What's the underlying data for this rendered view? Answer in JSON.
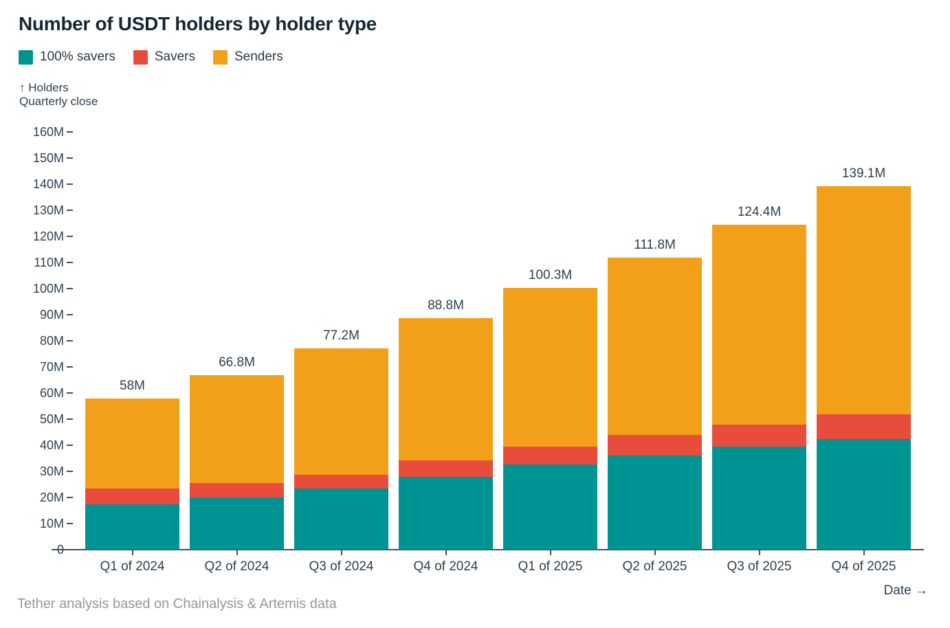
{
  "title": "Number of USDT holders by holder type",
  "y_axis_caption_line1": "↑ Holders",
  "y_axis_caption_line2": "Quarterly close",
  "x_axis_caption": "Date →",
  "footnote": "Tether analysis based on Chainalysis & Artemis data",
  "colors": {
    "teal": "#009394",
    "red": "#e84c3c",
    "orange": "#f2a019",
    "text_dark": "#2d4050",
    "title_dark": "#152734",
    "axis": "#3d4f5c",
    "footnote_gray": "#8e99a1",
    "background": "#ffffff"
  },
  "chart_data": {
    "type": "bar",
    "stacked": true,
    "title": "Number of USDT holders by holder type",
    "xlabel": "Date",
    "ylabel": "Holders, quarterly close (millions)",
    "grid": false,
    "legend_position": "top-left",
    "categories": [
      "Q1 of 2024",
      "Q2 of 2024",
      "Q3 of 2024",
      "Q4 of 2024",
      "Q1 of 2025",
      "Q2 of 2025",
      "Q3 of 2025",
      "Q4 of 2025"
    ],
    "series": [
      {
        "name": "100% savers",
        "color_key": "teal",
        "values": [
          17.3,
          19.9,
          23.4,
          28.0,
          32.6,
          36.0,
          39.6,
          42.4
        ]
      },
      {
        "name": "Savers",
        "color_key": "red",
        "values": [
          6.2,
          5.7,
          5.4,
          6.1,
          6.9,
          8.0,
          8.2,
          9.5
        ]
      },
      {
        "name": "Senders",
        "color_key": "orange",
        "values": [
          34.5,
          41.2,
          48.4,
          54.7,
          60.8,
          67.8,
          76.6,
          87.2
        ]
      }
    ],
    "totals": [
      58,
      66.8,
      77.2,
      88.8,
      100.3,
      111.8,
      124.4,
      139.1
    ],
    "totals_labels": [
      "58M",
      "66.8M",
      "77.2M",
      "88.8M",
      "100.3M",
      "111.8M",
      "124.4M",
      "139.1M"
    ],
    "ylim": [
      0,
      160
    ],
    "ytick_step": 10,
    "ytick_labels": [
      "0",
      "10M",
      "20M",
      "30M",
      "40M",
      "50M",
      "60M",
      "70M",
      "80M",
      "90M",
      "100M",
      "110M",
      "120M",
      "130M",
      "140M",
      "150M",
      "160M"
    ]
  }
}
